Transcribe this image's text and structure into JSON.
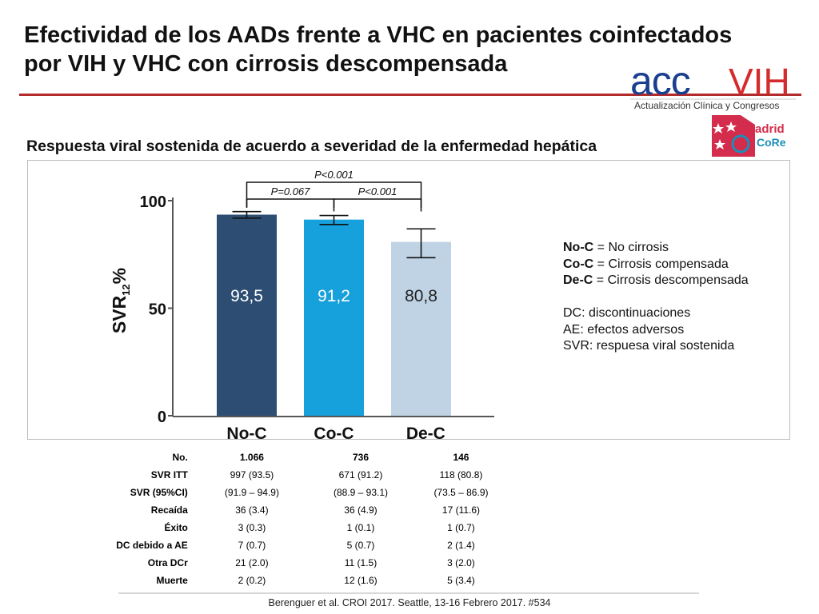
{
  "slide": {
    "title_line1": "Efectividad de los AADs frente a VHC en pacientes coinfectados",
    "title_line2": "por VIH y VHC con cirrosis descompensada",
    "subtitle": "Respuesta viral sostenida de acuerdo a severidad de la enfermedad hepática",
    "footer": "Berenguer et al. CROI 2017. Seattle, 13-16 Febrero 2017. #534"
  },
  "logos": {
    "acc_text": "acc",
    "vih_text": "VIH",
    "acc_tagline": "Actualización Clínica y Congresos",
    "madrid_line1": "adrid",
    "madrid_line2": "CoRe"
  },
  "chart_data": {
    "type": "bar",
    "categories": [
      "No-C",
      "Co-C",
      "_De-C"
    ],
    "values": [
      93.5,
      91.2,
      80.8
    ],
    "value_labels": [
      "93,5",
      "91,2",
      "80,8"
    ],
    "ci_low": [
      91.9,
      88.9,
      73.5
    ],
    "ci_high": [
      94.9,
      93.1,
      86.9
    ],
    "ylabel_main": "SVR",
    "ylabel_sub": "12",
    "ylabel_unit": "%",
    "yticks": [
      0,
      50,
      100
    ],
    "ylim": [
      0,
      100
    ],
    "colors": [
      "#2d4e72",
      "#16a0dc",
      "#bfd3e4"
    ],
    "significance": [
      {
        "from": 0,
        "to": 1,
        "label": "P=0.067"
      },
      {
        "from": 1,
        "to": 2,
        "label": "P<0.001"
      },
      {
        "from": 0,
        "to": 2,
        "label": "P<0.001"
      }
    ]
  },
  "legend": {
    "rows": [
      {
        "abbr": "No-C",
        "text": " = No cirrosis"
      },
      {
        "abbr": "Co-C",
        "text": " = Cirrosis compensada"
      },
      {
        "abbr": "De-C",
        "text": " = Cirrosis descompensada"
      }
    ],
    "notes": [
      "DC: discontinuaciones",
      "AE: efectos adversos",
      "SVR: respuesa viral sostenida"
    ]
  },
  "table": {
    "header": {
      "label": "No.",
      "values": [
        "1.066",
        "736",
        "146"
      ]
    },
    "rows": [
      {
        "label": "SVR ITT",
        "values": [
          "997 (93.5)",
          "671 (91.2)",
          "118 (80.8)"
        ]
      },
      {
        "label": "SVR (95%CI)",
        "values": [
          "(91.9 – 94.9)",
          "(88.9 – 93.1)",
          "(73.5 – 86.9)"
        ]
      },
      {
        "label": "Recaída",
        "values": [
          "36 (3.4)",
          "36 (4.9)",
          "17 (11.6)"
        ]
      },
      {
        "label": "Éxito",
        "values": [
          "3 (0.3)",
          "1 (0.1)",
          "1 (0.7)"
        ]
      },
      {
        "label": "DC debido a AE",
        "values": [
          "7 (0.7)",
          "5 (0.7)",
          "2 (1.4)"
        ]
      },
      {
        "label": "Otra DCr",
        "values": [
          "21 (2.0)",
          "11 (1.5)",
          "3 (2.0)"
        ]
      },
      {
        "label": "Muerte",
        "values": [
          "2 (0.2)",
          "12 (1.6)",
          "5 (3.4)"
        ]
      }
    ]
  }
}
